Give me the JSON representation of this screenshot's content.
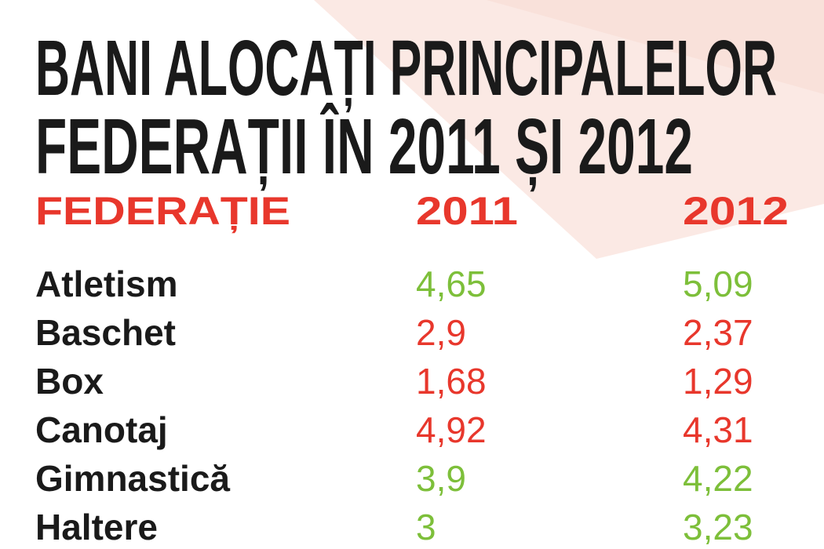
{
  "header": {
    "title_lines": [
      "BANI ALOCAȚI PRINCIPALELOR",
      "FEDERAȚII ÎN 2011 ȘI 2012"
    ]
  },
  "table": {
    "columns": [
      "FEDERAȚIE",
      "2011",
      "2012"
    ],
    "header_color": "#e8372c",
    "rows": [
      {
        "name": "Atletism",
        "v2011": "4,65",
        "v2012": "5,09",
        "color": "#7dbf3a"
      },
      {
        "name": "Baschet",
        "v2011": "2,9",
        "v2012": "2,37",
        "color": "#e8372c"
      },
      {
        "name": "Box",
        "v2011": "1,68",
        "v2012": "1,29",
        "color": "#e8372c"
      },
      {
        "name": "Canotaj",
        "v2011": "4,92",
        "v2012": "4,31",
        "color": "#e8372c"
      },
      {
        "name": "Gimnastică",
        "v2011": "3,9",
        "v2012": "4,22",
        "color": "#7dbf3a"
      },
      {
        "name": "Haltere",
        "v2011": "3",
        "v2012": "3,23",
        "color": "#7dbf3a"
      }
    ]
  }
}
